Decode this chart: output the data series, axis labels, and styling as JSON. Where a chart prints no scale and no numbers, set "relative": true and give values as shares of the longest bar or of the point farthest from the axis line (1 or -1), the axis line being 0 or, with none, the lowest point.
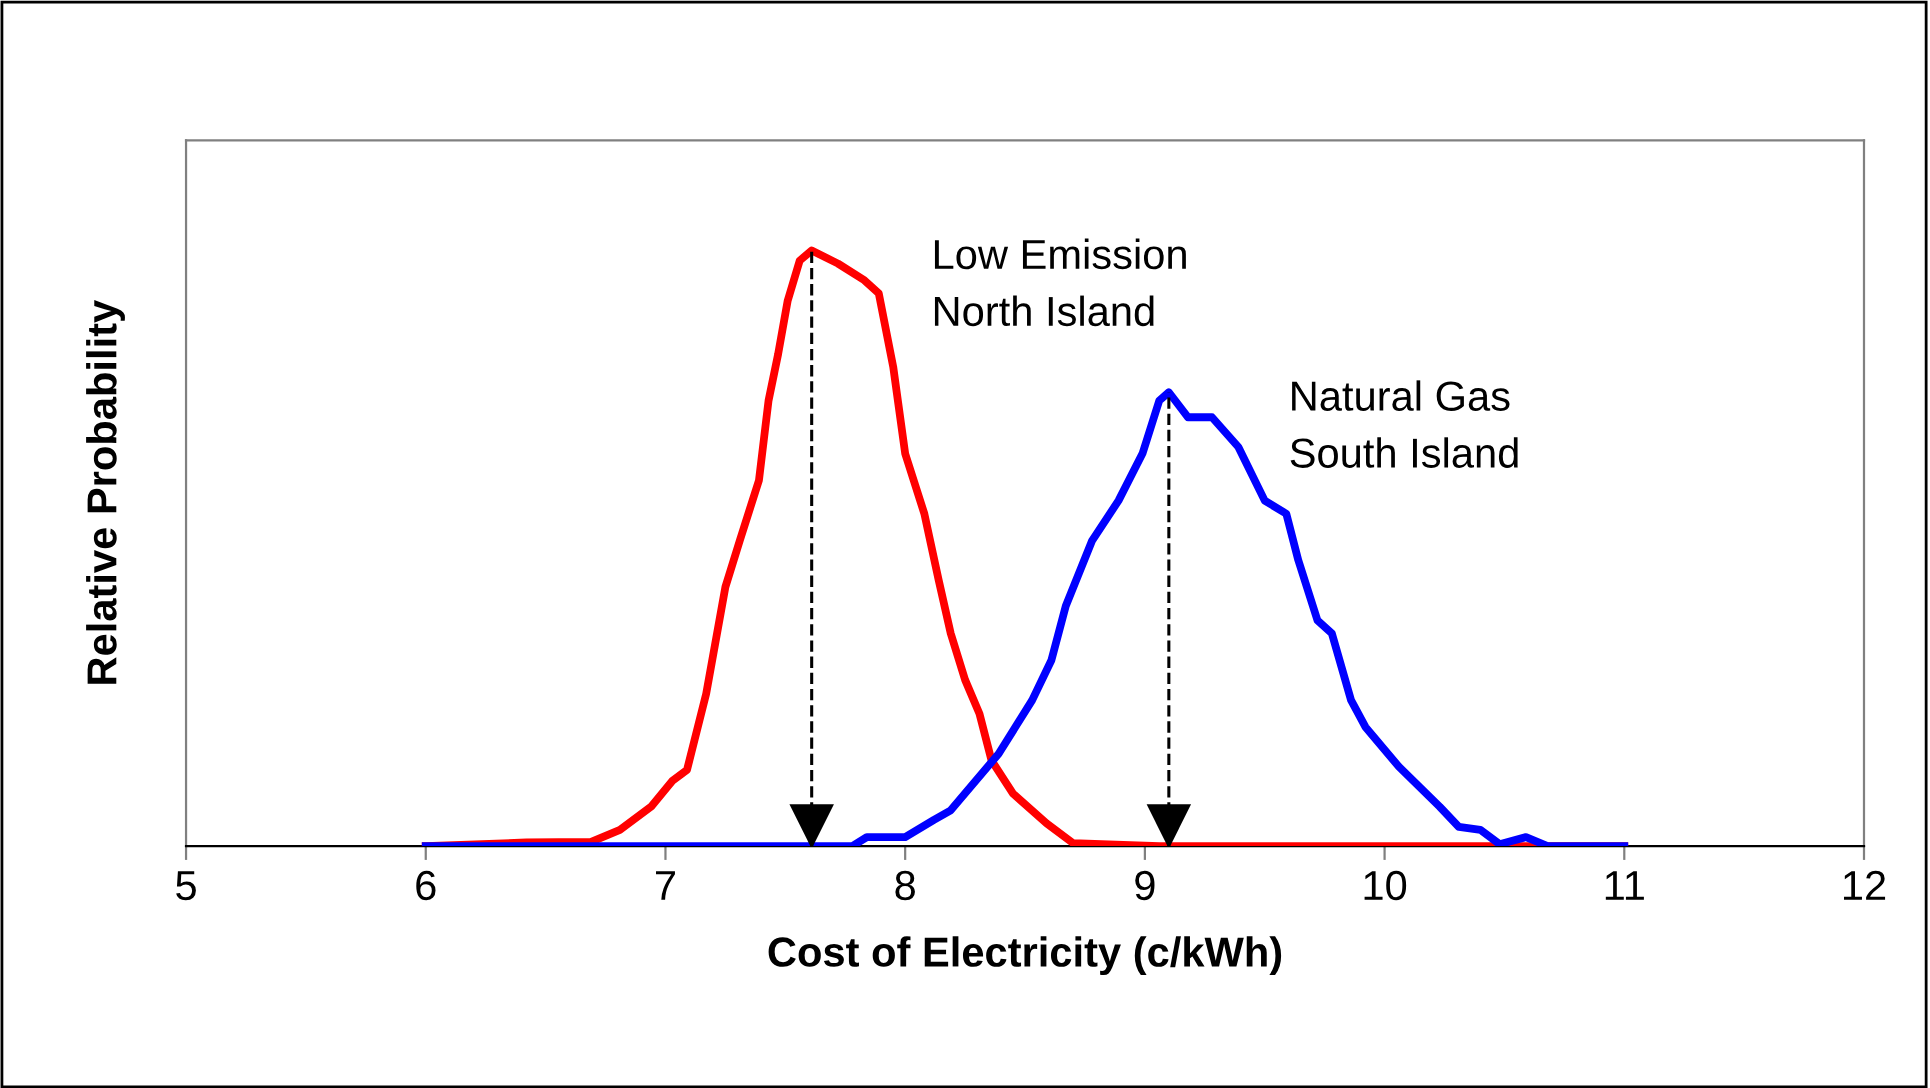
{
  "chart_data": {
    "type": "line",
    "relative": true,
    "xlabel": "Cost of Electricity (c/kWh)",
    "ylabel": "Relative Probability",
    "ref_lines": [
      {
        "axis": "x",
        "value": 7.61,
        "color": "#000000",
        "line_style": "dashed"
      },
      {
        "axis": "x",
        "value": 9.1,
        "color": "#000000",
        "line_style": "dashed"
      }
    ],
    "xlim": [
      5,
      12
    ],
    "xticks": [
      5,
      6,
      7,
      8,
      9,
      10,
      11,
      12
    ],
    "grid": false,
    "legend": false,
    "marker": "none",
    "line_style": "solid",
    "series": [
      {
        "name": "Low Emission\nNorth Island",
        "color": "#ff0000",
        "x": [
          6.0,
          6.42,
          6.69,
          6.81,
          6.94,
          7.03,
          7.09,
          7.17,
          7.25,
          7.31,
          7.39,
          7.43,
          7.47,
          7.51,
          7.56,
          7.61,
          7.72,
          7.83,
          7.89,
          7.95,
          8.0,
          8.08,
          8.14,
          8.19,
          8.25,
          8.31,
          8.36,
          8.45,
          8.59,
          8.7,
          9.06,
          11.0
        ],
        "values": [
          0,
          0.006,
          0.007,
          0.027,
          0.066,
          0.11,
          0.128,
          0.256,
          0.435,
          0.513,
          0.614,
          0.748,
          0.826,
          0.916,
          0.983,
          1.0,
          0.978,
          0.95,
          0.928,
          0.805,
          0.659,
          0.558,
          0.446,
          0.357,
          0.279,
          0.222,
          0.144,
          0.088,
          0.038,
          0.005,
          0,
          0
        ]
      },
      {
        "name": "Natural Gas\nSouth Island",
        "color": "#0000ff",
        "x": [
          6.0,
          7.78,
          7.84,
          8.0,
          8.12,
          8.19,
          8.39,
          8.53,
          8.61,
          8.67,
          8.78,
          8.89,
          8.99,
          9.06,
          9.1,
          9.18,
          9.28,
          9.39,
          9.5,
          9.59,
          9.64,
          9.72,
          9.78,
          9.86,
          9.92,
          10.06,
          10.23,
          10.31,
          10.4,
          10.48,
          10.59,
          10.68,
          11.0
        ],
        "values": [
          0,
          0,
          0.015,
          0.015,
          0.044,
          0.06,
          0.155,
          0.245,
          0.312,
          0.403,
          0.513,
          0.58,
          0.659,
          0.748,
          0.762,
          0.72,
          0.72,
          0.67,
          0.58,
          0.558,
          0.48,
          0.379,
          0.357,
          0.245,
          0.2,
          0.133,
          0.066,
          0.032,
          0.027,
          0.003,
          0.015,
          0,
          0
        ]
      }
    ]
  }
}
